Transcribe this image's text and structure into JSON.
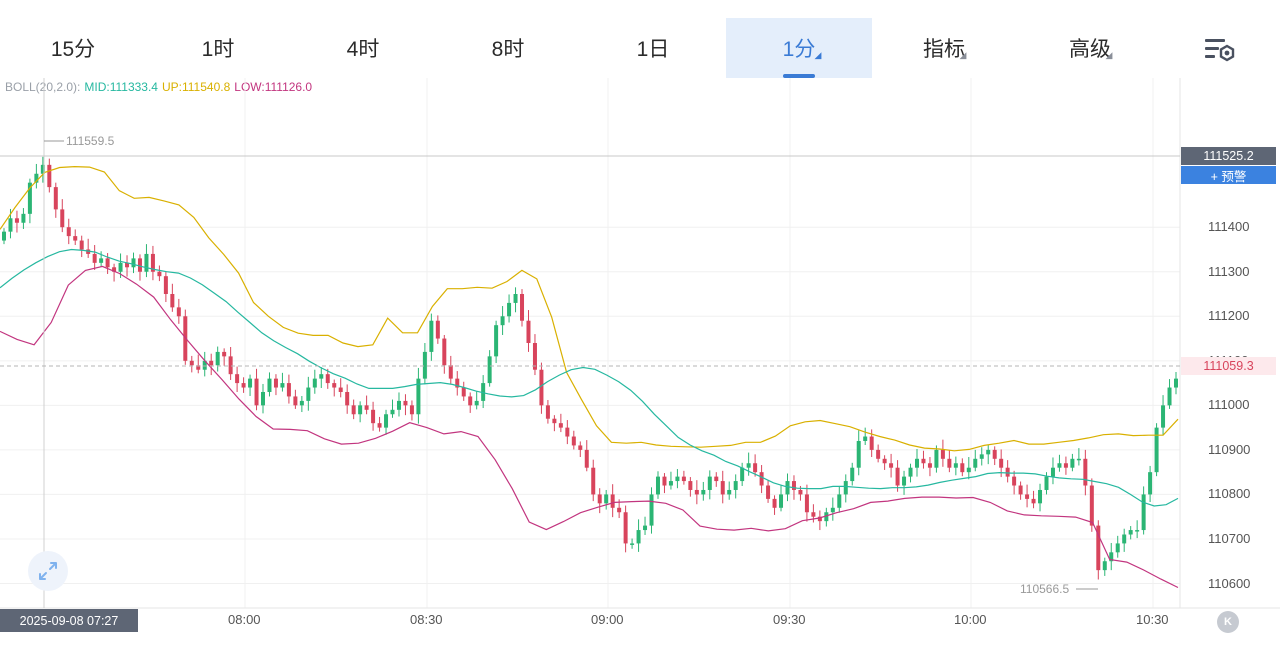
{
  "tabs": [
    {
      "label": "15分",
      "dropdown": false,
      "active": false
    },
    {
      "label": "1时",
      "dropdown": false,
      "active": false
    },
    {
      "label": "4时",
      "dropdown": false,
      "active": false
    },
    {
      "label": "8时",
      "dropdown": false,
      "active": false
    },
    {
      "label": "1日",
      "dropdown": false,
      "active": false
    },
    {
      "label": "1分",
      "dropdown": true,
      "active": true
    },
    {
      "label": "指标",
      "dropdown": true,
      "active": false
    },
    {
      "label": "高级",
      "dropdown": true,
      "active": false
    }
  ],
  "settings_icon": "chart-settings-icon",
  "boll": {
    "name": "BOLL(20,2.0):",
    "mid": "MID:111333.4",
    "up": "UP:111540.8",
    "low": "LOW:111126.0",
    "colors": {
      "mid": "#26b8a0",
      "up": "#d9b000",
      "low": "#c2357f"
    }
  },
  "price_tags": {
    "crosshair": "111525.2",
    "alert_button": "+ 预警",
    "last_price": "111059.3"
  },
  "extremes": {
    "high": "111559.5",
    "low": "110566.5"
  },
  "cursor": {
    "time": "2025-09-08 07:27",
    "price": 111525.2
  },
  "colors": {
    "up_candle": "#2bb574",
    "down_candle": "#d8445c",
    "accent": "#3a7bd5"
  },
  "chart_data": {
    "type": "candlestick",
    "interval": "1分",
    "x_ticks": [
      "08:00",
      "08:30",
      "09:00",
      "09:30",
      "10:00",
      "10:30"
    ],
    "y_ticks": [
      111400,
      111300,
      111200,
      111100,
      111000,
      110900,
      110800,
      110700,
      110600
    ],
    "ylim": [
      110545,
      111735
    ],
    "grid": true,
    "close": [
      111390,
      111420,
      111410,
      111430,
      111500,
      111520,
      111540,
      111490,
      111440,
      111400,
      111380,
      111370,
      111350,
      111340,
      111320,
      111330,
      111310,
      111300,
      111320,
      111310,
      111330,
      111300,
      111340,
      111300,
      111290,
      111250,
      111220,
      111200,
      111100,
      111090,
      111080,
      111100,
      111090,
      111120,
      111110,
      111070,
      111050,
      111040,
      111060,
      111000,
      111030,
      111060,
      111040,
      111050,
      111020,
      111000,
      111010,
      111040,
      111060,
      111070,
      111050,
      111040,
      111030,
      111000,
      110980,
      111000,
      110990,
      110960,
      110950,
      110980,
      110990,
      111010,
      111000,
      110980,
      111060,
      111120,
      111190,
      111150,
      111090,
      111060,
      111040,
      111020,
      111000,
      111010,
      111050,
      111110,
      111180,
      111200,
      111230,
      111250,
      111190,
      111140,
      111080,
      111000,
      110970,
      110960,
      110950,
      110930,
      110910,
      110900,
      110860,
      110800,
      110780,
      110800,
      110770,
      110760,
      110690,
      110690,
      110720,
      110730,
      110800,
      110840,
      110820,
      110830,
      110840,
      110830,
      110810,
      110800,
      110810,
      110840,
      110830,
      110800,
      110810,
      110830,
      110860,
      110870,
      110850,
      110820,
      110790,
      110770,
      110800,
      110830,
      110810,
      110800,
      110760,
      110750,
      110740,
      110760,
      110770,
      110800,
      110830,
      110860,
      110920,
      110930,
      110900,
      110880,
      110870,
      110860,
      110820,
      110840,
      110860,
      110880,
      110870,
      110860,
      110900,
      110880,
      110860,
      110870,
      110850,
      110860,
      110880,
      110890,
      110900,
      110880,
      110860,
      110840,
      110820,
      110800,
      110790,
      110780,
      110810,
      110840,
      110860,
      110870,
      110860,
      110880,
      110880,
      110820,
      110730,
      110630,
      110650,
      110670,
      110690,
      110710,
      110720,
      110720,
      110800,
      110850,
      110950,
      111000,
      111040,
      111060
    ],
    "boll_mid": [
      111264,
      111285,
      111304,
      111320,
      111334,
      111345,
      111350,
      111348,
      111344,
      111333,
      111324,
      111318,
      111311,
      111305,
      111300,
      111297,
      111286,
      111271,
      111252,
      111233,
      111209,
      111186,
      111163,
      111145,
      111130,
      111116,
      111099,
      111084,
      111071,
      111061,
      111048,
      111038,
      111038,
      111038,
      111042,
      111047,
      111049,
      111051,
      111047,
      111040,
      111032,
      111026,
      111021,
      111019,
      111022,
      111035,
      111053,
      111068,
      111080,
      111085,
      111081,
      111068,
      111053,
      111034,
      111009,
      110980,
      110954,
      110928,
      110911,
      110898,
      110888,
      110874,
      110864,
      110851,
      110839,
      110826,
      110818,
      110814,
      110813,
      110813,
      110818,
      110818,
      110816,
      110814,
      110813,
      110815,
      110815,
      110817,
      110821,
      110827,
      110832,
      110836,
      110840,
      110847,
      110849,
      110848,
      110848,
      110846,
      110841,
      110837,
      110835,
      110834,
      110829,
      110824,
      110816,
      110800,
      110783,
      110774,
      110777,
      110791
    ],
    "boll_up": [
      111395,
      111444,
      111488,
      111523,
      111534,
      111536,
      111535,
      111524,
      111482,
      111465,
      111467,
      111459,
      111450,
      111422,
      111376,
      111339,
      111297,
      111231,
      111200,
      111175,
      111162,
      111157,
      111157,
      111140,
      111132,
      111136,
      111196,
      111163,
      111163,
      111222,
      111262,
      111262,
      111265,
      111263,
      111278,
      111303,
      111284,
      111198,
      111074,
      111013,
      110954,
      110917,
      110915,
      110917,
      110911,
      110908,
      110907,
      110906,
      110908,
      110910,
      110917,
      110917,
      110931,
      110954,
      110963,
      110966,
      110959,
      110952,
      110940,
      110930,
      110922,
      110911,
      110904,
      110902,
      110898,
      110901,
      110910,
      110915,
      110921,
      110913,
      110913,
      110917,
      110921,
      110927,
      110934,
      110936,
      110932,
      110933,
      110933,
      110969
    ],
    "boll_low": [
      111166,
      111148,
      111136,
      111186,
      111270,
      111303,
      111312,
      111296,
      111272,
      111243,
      111192,
      111145,
      111100,
      111058,
      111014,
      110975,
      110947,
      110946,
      110943,
      110925,
      110913,
      110915,
      110926,
      110942,
      110961,
      110950,
      110936,
      110941,
      110930,
      110878,
      110813,
      110738,
      110721,
      110739,
      110759,
      110771,
      110782,
      110784,
      110785,
      110780,
      110765,
      110729,
      110722,
      110720,
      110724,
      110718,
      110723,
      110741,
      110747,
      110759,
      110768,
      110782,
      110785,
      110791,
      110794,
      110794,
      110792,
      110793,
      110782,
      110763,
      110754,
      110752,
      110751,
      110749,
      110737,
      110654,
      110648,
      110630,
      110610,
      110591
    ]
  }
}
